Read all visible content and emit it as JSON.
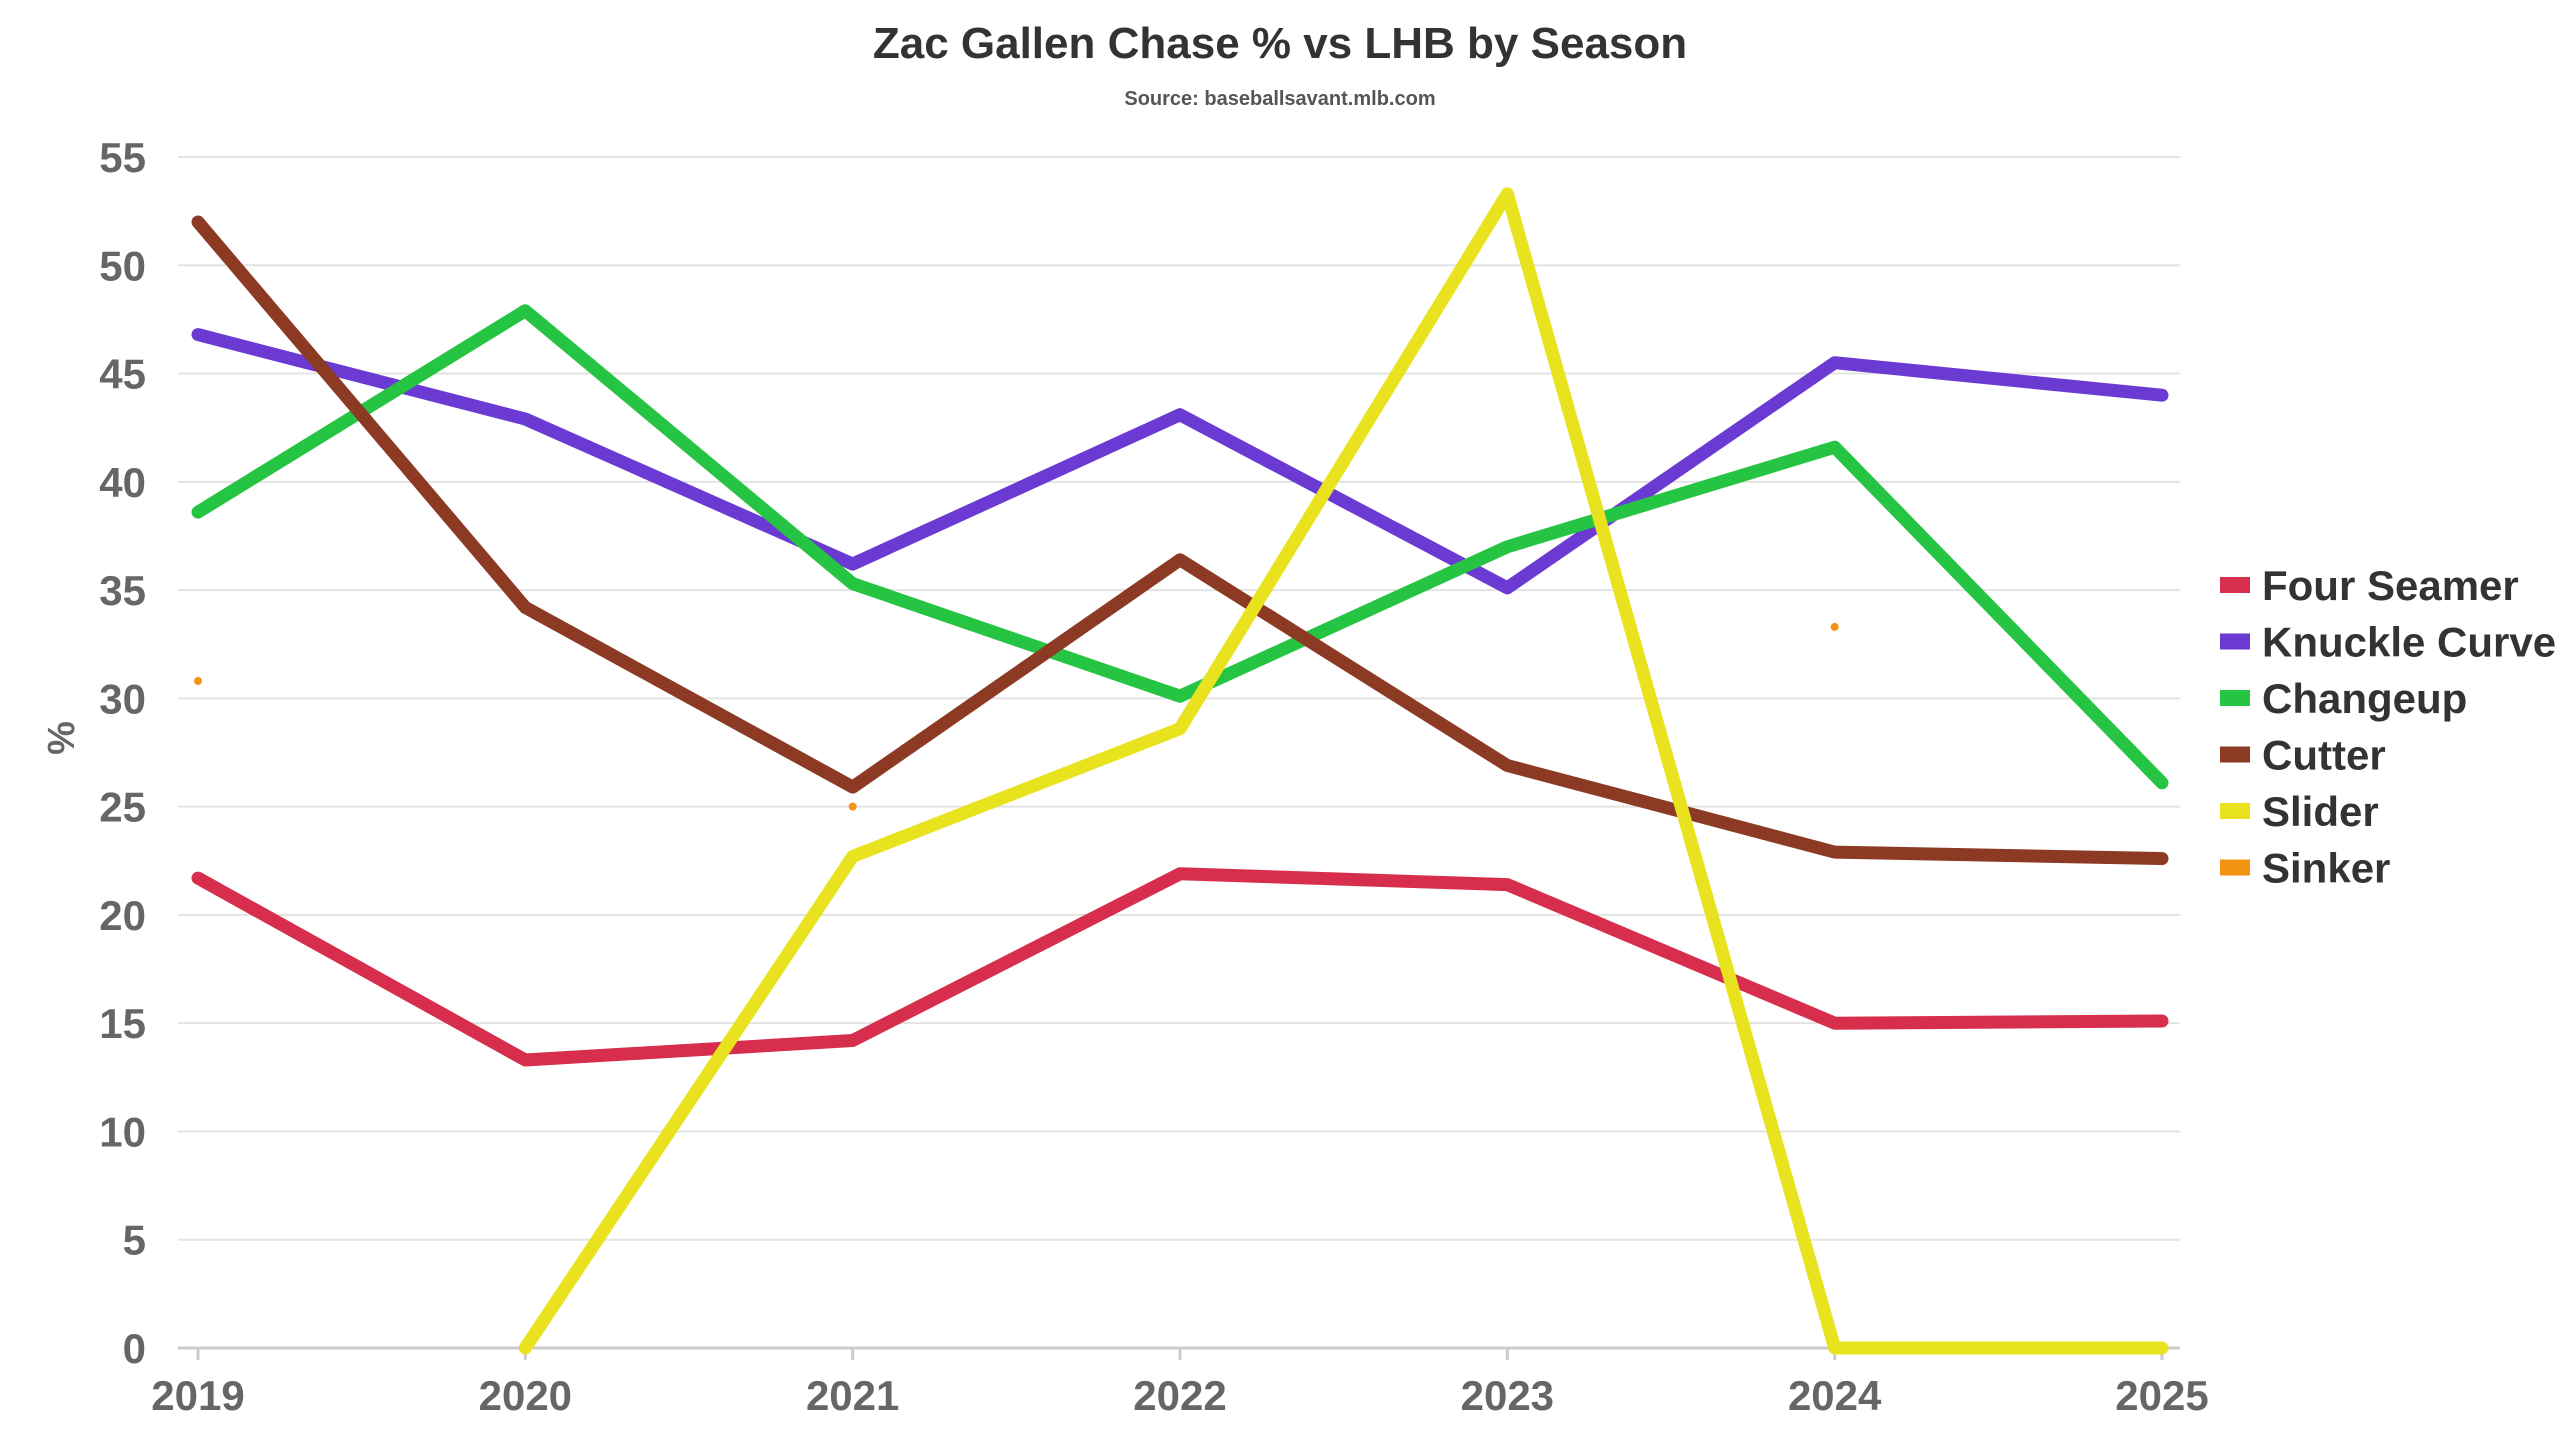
{
  "chart_data": {
    "type": "line",
    "title": "Zac Gallen Chase % vs LHB by Season",
    "subtitle": "Source: baseballsavant.mlb.com",
    "xlabel": "",
    "ylabel": "%",
    "x": [
      "2019",
      "2020",
      "2021",
      "2022",
      "2023",
      "2024",
      "2025"
    ],
    "ylim": [
      0,
      55
    ],
    "yticks": [
      0,
      5,
      10,
      15,
      20,
      25,
      30,
      35,
      40,
      45,
      50,
      55
    ],
    "grid": true,
    "legend_position": "right",
    "series": [
      {
        "name": "Four Seamer",
        "color": "#d62e4c",
        "values": [
          21.7,
          13.3,
          14.2,
          21.9,
          21.4,
          15.0,
          15.1
        ]
      },
      {
        "name": "Knuckle Curve",
        "color": "#6a3ad3",
        "values": [
          46.8,
          42.9,
          36.2,
          43.1,
          35.1,
          45.5,
          44.0
        ]
      },
      {
        "name": "Changeup",
        "color": "#26c443",
        "values": [
          38.6,
          47.9,
          35.3,
          30.1,
          37.0,
          41.6,
          26.1
        ]
      },
      {
        "name": "Cutter",
        "color": "#8c3a24",
        "values": [
          52.0,
          34.2,
          25.9,
          36.4,
          26.9,
          22.9,
          22.6
        ]
      },
      {
        "name": "Slider",
        "color": "#e9e31f",
        "values": [
          null,
          0.0,
          22.7,
          28.6,
          53.3,
          0.0,
          0.0
        ]
      },
      {
        "name": "Sinker",
        "color": "#f39312",
        "values": [
          30.8,
          null,
          25.0,
          null,
          null,
          33.3,
          null
        ]
      }
    ]
  }
}
